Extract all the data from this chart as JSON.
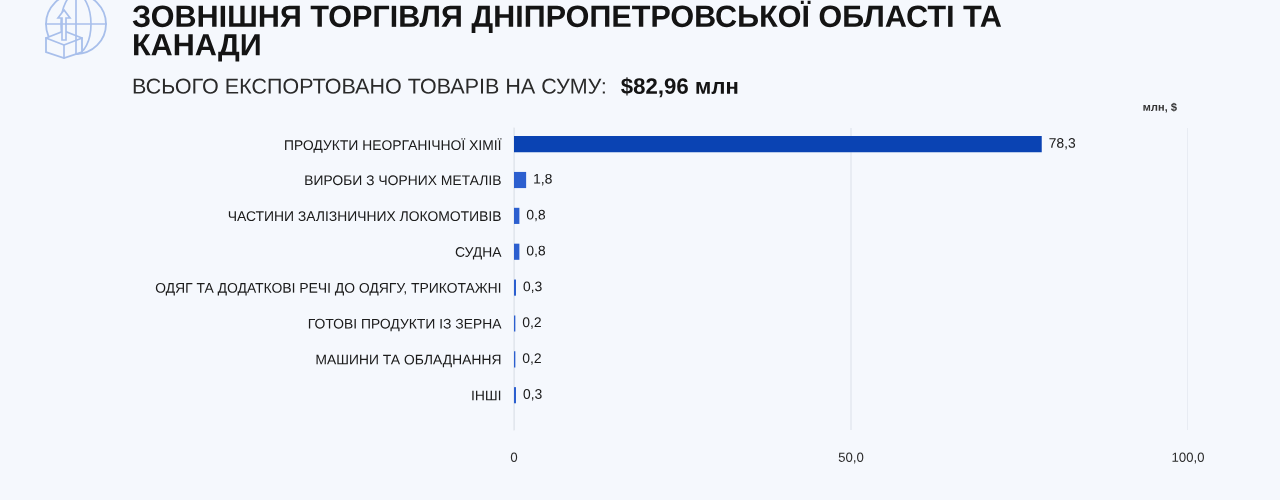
{
  "chart_data": {
    "type": "bar",
    "orientation": "horizontal",
    "title": "ЗОВНІШНЯ ТОРГІВЛЯ ДНІПРОПЕТРОВСЬКОЇ ОБЛАСТІ ТА КАНАДИ",
    "subtitle": "ВСЬОГО ЕКСПОРТОВАНО ТОВАРІВ НА СУМУ:",
    "annotations": [
      "$82,96 млн"
    ],
    "xlabel": "млн, $",
    "categories": [
      "ПРОДУКТИ НЕОРГАНІЧНОЇ ХІМІЇ",
      "ВИРОБИ З ЧОРНИХ МЕТАЛІВ",
      "ЧАСТИНИ ЗАЛІЗНИЧНИХ ЛОКОМОТИВІВ",
      "СУДНА",
      "ОДЯГ ТА ДОДАТКОВІ РЕЧІ ДО ОДЯГУ, ТРИКОТАЖНІ",
      "ГОТОВІ ПРОДУКТИ ІЗ ЗЕРНА",
      "МАШИНИ ТА ОБЛАДНАННЯ",
      "ІНШІ"
    ],
    "values": [
      78.3,
      1.8,
      0.8,
      0.8,
      0.3,
      0.2,
      0.2,
      0.3
    ],
    "value_labels": [
      "78,3",
      "1,8",
      "0,8",
      "0,8",
      "0,3",
      "0,2",
      "0,2",
      "0,3"
    ],
    "colors": [
      "#0a43b3",
      "#2c5fcf",
      "#2c5fcf",
      "#2c5fcf",
      "#2c5fcf",
      "#2c5fcf",
      "#2c5fcf",
      "#2c5fcf"
    ],
    "xlim": [
      0,
      100
    ],
    "xticks": [
      0,
      {
        "value": 50,
        "label": "50,0"
      },
      {
        "value": 100,
        "label": "100,0"
      }
    ],
    "grid": "x"
  }
}
